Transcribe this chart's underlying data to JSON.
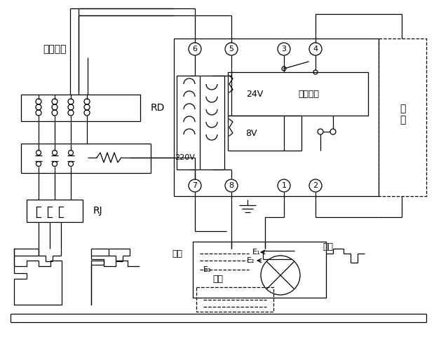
{
  "bg_color": "#ffffff",
  "fig_width": 6.19,
  "fig_height": 4.84,
  "dpi": 100,
  "text": {
    "three_phase": "三相电源",
    "RD": "RD",
    "RJ": "RJ",
    "paishui": "排\n水",
    "24V": "24V",
    "control": "控制回路",
    "220V": "220V",
    "8V": "8V",
    "qidong": "起动",
    "tingzhi": "停止",
    "shuiyuan": "水源",
    "E1": "E₁",
    "E2": "E₂",
    "E3": "E₃"
  }
}
